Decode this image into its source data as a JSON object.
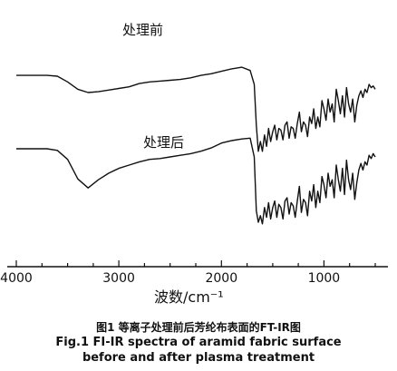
{
  "chart_data": {
    "type": "line",
    "xlabel": "波数/cm⁻¹",
    "ylabel": "",
    "xlim": [
      4000,
      500
    ],
    "reversed_x": true,
    "xticks": [
      4000,
      3000,
      2000,
      1000
    ],
    "tick_labels": [
      "4000",
      "3000",
      "2000",
      "1000"
    ],
    "grid": false,
    "y_axis_shown": false,
    "series": [
      {
        "name": "处理前",
        "color": "#111111",
        "x": [
          4000,
          3900,
          3800,
          3700,
          3600,
          3500,
          3400,
          3300,
          3200,
          3100,
          3000,
          2900,
          2800,
          2700,
          2600,
          2500,
          2400,
          2300,
          2200,
          2100,
          2000,
          1900,
          1800,
          1720,
          1680,
          1660,
          1640,
          1620,
          1600,
          1580,
          1560,
          1540,
          1520,
          1500,
          1480,
          1460,
          1440,
          1420,
          1400,
          1380,
          1360,
          1340,
          1320,
          1300,
          1280,
          1260,
          1240,
          1220,
          1200,
          1180,
          1160,
          1140,
          1120,
          1100,
          1080,
          1060,
          1040,
          1020,
          1000,
          980,
          960,
          940,
          920,
          900,
          880,
          860,
          840,
          820,
          800,
          780,
          760,
          740,
          720,
          700,
          680,
          660,
          640,
          620,
          600,
          580,
          560,
          540,
          520,
          500
        ],
        "y": [
          21,
          21,
          21,
          21,
          20,
          13,
          4,
          0,
          1,
          3,
          5,
          7,
          11,
          13,
          14,
          15,
          16,
          18,
          21,
          23,
          26,
          29,
          31,
          27,
          10,
          -40,
          -72,
          -60,
          -72,
          -52,
          -66,
          -44,
          -60,
          -48,
          -40,
          -58,
          -44,
          -46,
          -58,
          -40,
          -36,
          -56,
          -42,
          -44,
          -56,
          -38,
          -24,
          -48,
          -36,
          -40,
          -54,
          -30,
          -38,
          -20,
          -44,
          -30,
          -42,
          -10,
          -20,
          -34,
          -8,
          -24,
          -14,
          -36,
          4,
          -10,
          -26,
          -4,
          -30,
          6,
          -14,
          -24,
          -8,
          -36,
          -16,
          -4,
          2,
          -6,
          4,
          0,
          10,
          6,
          8,
          4
        ]
      },
      {
        "name": "处理后",
        "color": "#111111",
        "x": [
          4000,
          3900,
          3800,
          3700,
          3600,
          3500,
          3400,
          3300,
          3200,
          3100,
          3000,
          2900,
          2800,
          2700,
          2600,
          2500,
          2400,
          2300,
          2200,
          2100,
          2000,
          1900,
          1800,
          1720,
          1680,
          1660,
          1640,
          1620,
          1600,
          1580,
          1560,
          1540,
          1520,
          1500,
          1480,
          1460,
          1440,
          1420,
          1400,
          1380,
          1360,
          1340,
          1320,
          1300,
          1280,
          1260,
          1240,
          1220,
          1200,
          1180,
          1160,
          1140,
          1120,
          1100,
          1080,
          1060,
          1040,
          1020,
          1000,
          980,
          960,
          940,
          920,
          900,
          880,
          860,
          840,
          820,
          800,
          780,
          760,
          740,
          720,
          700,
          680,
          660,
          640,
          620,
          600,
          580,
          560,
          540,
          520,
          500
        ],
        "y": [
          -20,
          -20,
          -20,
          -20,
          -22,
          -33,
          -57,
          -68,
          -58,
          -50,
          -44,
          -40,
          -36,
          -33,
          -32,
          -30,
          -28,
          -26,
          -23,
          -19,
          -13,
          -10,
          -8,
          -7,
          -30,
          -96,
          -110,
          -102,
          -112,
          -92,
          -104,
          -86,
          -106,
          -92,
          -84,
          -104,
          -88,
          -92,
          -106,
          -84,
          -80,
          -100,
          -86,
          -90,
          -104,
          -84,
          -66,
          -98,
          -82,
          -86,
          -102,
          -72,
          -84,
          -64,
          -92,
          -72,
          -86,
          -54,
          -64,
          -80,
          -50,
          -66,
          -58,
          -80,
          -40,
          -58,
          -72,
          -44,
          -76,
          -34,
          -58,
          -70,
          -50,
          -82,
          -62,
          -46,
          -38,
          -46,
          -36,
          -40,
          -28,
          -32,
          -26,
          -30
        ]
      }
    ],
    "annotations": [
      "处理前",
      "处理后"
    ]
  },
  "caption": {
    "cn": "图1  等离子处理前后芳纶布表面的FT-IR图",
    "en_line1": "Fig.1  FI-IR spectra of aramid fabric surface",
    "en_line2": "before and after plasma treatment"
  }
}
